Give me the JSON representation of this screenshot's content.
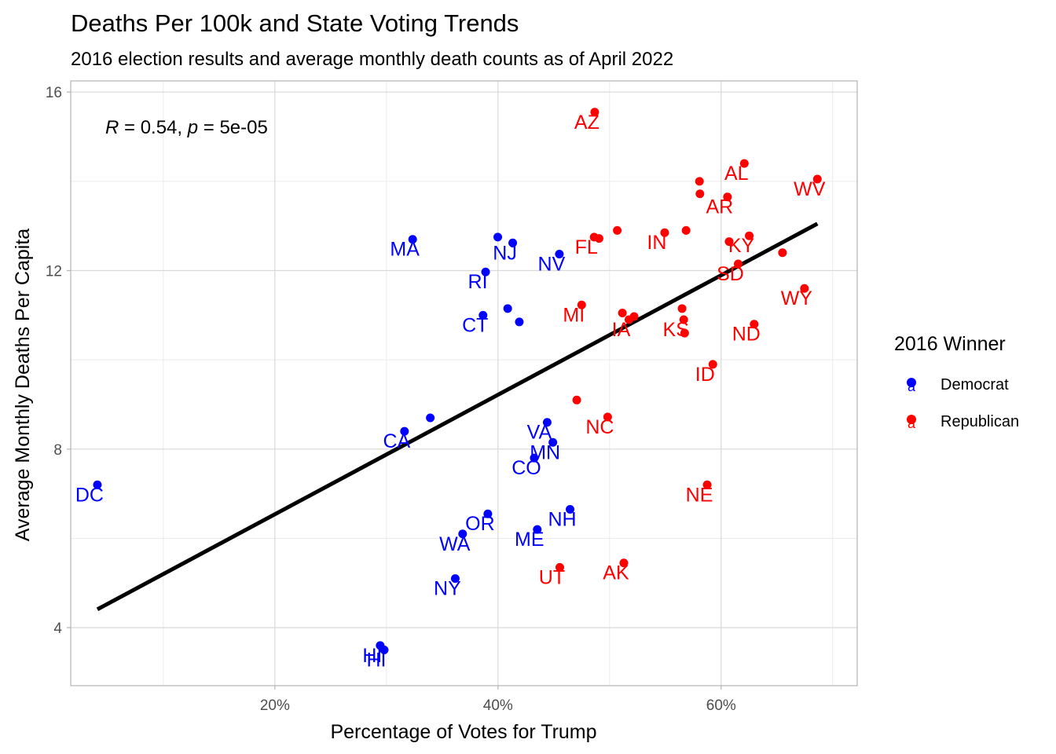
{
  "chart_data": {
    "type": "scatter",
    "title": "Deaths Per 100k and State Voting Trends",
    "subtitle": "2016 election results and average monthly death counts as of April 2022",
    "xlabel": "Percentage of Votes for Trump",
    "ylabel": "Average Monthly Deaths Per Capita",
    "xlim": [
      0.017,
      0.722
    ],
    "ylim": [
      2.7,
      16.25
    ],
    "x_ticks": [
      0.2,
      0.4,
      0.6
    ],
    "x_tick_labels": [
      "20%",
      "40%",
      "60%"
    ],
    "y_ticks": [
      4,
      8,
      12,
      16
    ],
    "y_tick_labels": [
      "4",
      "8",
      "12",
      "16"
    ],
    "grid": true,
    "legend_position": "right",
    "legend": {
      "title": "2016 Winner",
      "entries": [
        "Democrat",
        "Republican"
      ],
      "key_glyph": "a"
    },
    "stat_annotation": {
      "r_symbol": "R",
      "r_value": " = 0.54, ",
      "p_symbol": "p",
      "p_value": " = 5e-05"
    },
    "regression_line": {
      "x": [
        0.0409,
        0.6863
      ],
      "y": [
        4.41,
        13.05
      ],
      "color": "#000000"
    },
    "colors": {
      "Democrat": "#0000ff",
      "Republican": "#ff0000"
    },
    "series": [
      {
        "name": "Democrat",
        "points": [
          {
            "label": "DC",
            "x": 0.0409,
            "y": 7.2
          },
          {
            "label": "HI",
            "x": 0.2944,
            "y": 3.6
          },
          {
            "label": "HI",
            "x": 0.298,
            "y": 3.5
          },
          {
            "label": "NY",
            "x": 0.3617,
            "y": 5.1
          },
          {
            "label": "WA",
            "x": 0.3683,
            "y": 6.1
          },
          {
            "label": "CA",
            "x": 0.3162,
            "y": 8.4
          },
          {
            "label": "",
            "x": 0.3393,
            "y": 8.7
          },
          {
            "label": "MA",
            "x": 0.3235,
            "y": 12.7
          },
          {
            "label": "RI",
            "x": 0.3889,
            "y": 11.97
          },
          {
            "label": "CT",
            "x": 0.3866,
            "y": 11.0
          },
          {
            "label": "",
            "x": 0.4087,
            "y": 11.15
          },
          {
            "label": "",
            "x": 0.4191,
            "y": 10.85
          },
          {
            "label": "",
            "x": 0.3998,
            "y": 12.75
          },
          {
            "label": "NJ",
            "x": 0.4132,
            "y": 12.62
          },
          {
            "label": "NV",
            "x": 0.455,
            "y": 12.37
          },
          {
            "label": "OR",
            "x": 0.3909,
            "y": 6.55
          },
          {
            "label": "ME",
            "x": 0.4352,
            "y": 6.2
          },
          {
            "label": "NH",
            "x": 0.4646,
            "y": 6.65
          },
          {
            "label": "CO",
            "x": 0.4325,
            "y": 7.8
          },
          {
            "label": "MN",
            "x": 0.4492,
            "y": 8.15
          },
          {
            "label": "VA",
            "x": 0.4441,
            "y": 8.6
          }
        ]
      },
      {
        "name": "Republican",
        "points": [
          {
            "label": "AZ",
            "x": 0.4867,
            "y": 15.55
          },
          {
            "label": "AL",
            "x": 0.6208,
            "y": 14.4
          },
          {
            "label": "WV",
            "x": 0.6863,
            "y": 14.05
          },
          {
            "label": "",
            "x": 0.5806,
            "y": 14.0
          },
          {
            "label": "",
            "x": 0.581,
            "y": 13.72
          },
          {
            "label": "AR",
            "x": 0.6057,
            "y": 13.65
          },
          {
            "label": "",
            "x": 0.5069,
            "y": 12.9
          },
          {
            "label": "IN",
            "x": 0.5494,
            "y": 12.85
          },
          {
            "label": "",
            "x": 0.5686,
            "y": 12.9
          },
          {
            "label": "FL",
            "x": 0.4862,
            "y": 12.75
          },
          {
            "label": "",
            "x": 0.4906,
            "y": 12.72
          },
          {
            "label": "KY",
            "x": 0.6252,
            "y": 12.78
          },
          {
            "label": "",
            "x": 0.6072,
            "y": 12.65
          },
          {
            "label": "",
            "x": 0.655,
            "y": 12.4
          },
          {
            "label": "SD",
            "x": 0.6153,
            "y": 12.15
          },
          {
            "label": "WY",
            "x": 0.6747,
            "y": 11.6
          },
          {
            "label": "MI",
            "x": 0.475,
            "y": 11.23
          },
          {
            "label": "",
            "x": 0.5115,
            "y": 11.05
          },
          {
            "label": "IA",
            "x": 0.5174,
            "y": 10.9
          },
          {
            "label": "",
            "x": 0.522,
            "y": 10.97
          },
          {
            "label": "",
            "x": 0.565,
            "y": 11.15
          },
          {
            "label": "KS",
            "x": 0.5665,
            "y": 10.9
          },
          {
            "label": "",
            "x": 0.5673,
            "y": 10.6
          },
          {
            "label": "ND",
            "x": 0.6296,
            "y": 10.8
          },
          {
            "label": "ID",
            "x": 0.5926,
            "y": 9.9
          },
          {
            "label": "",
            "x": 0.4706,
            "y": 9.1
          },
          {
            "label": "NC",
            "x": 0.4983,
            "y": 8.72
          },
          {
            "label": "NE",
            "x": 0.5875,
            "y": 7.2
          },
          {
            "label": "AK",
            "x": 0.5128,
            "y": 5.45
          },
          {
            "label": "UT",
            "x": 0.4554,
            "y": 5.35
          }
        ]
      }
    ]
  }
}
